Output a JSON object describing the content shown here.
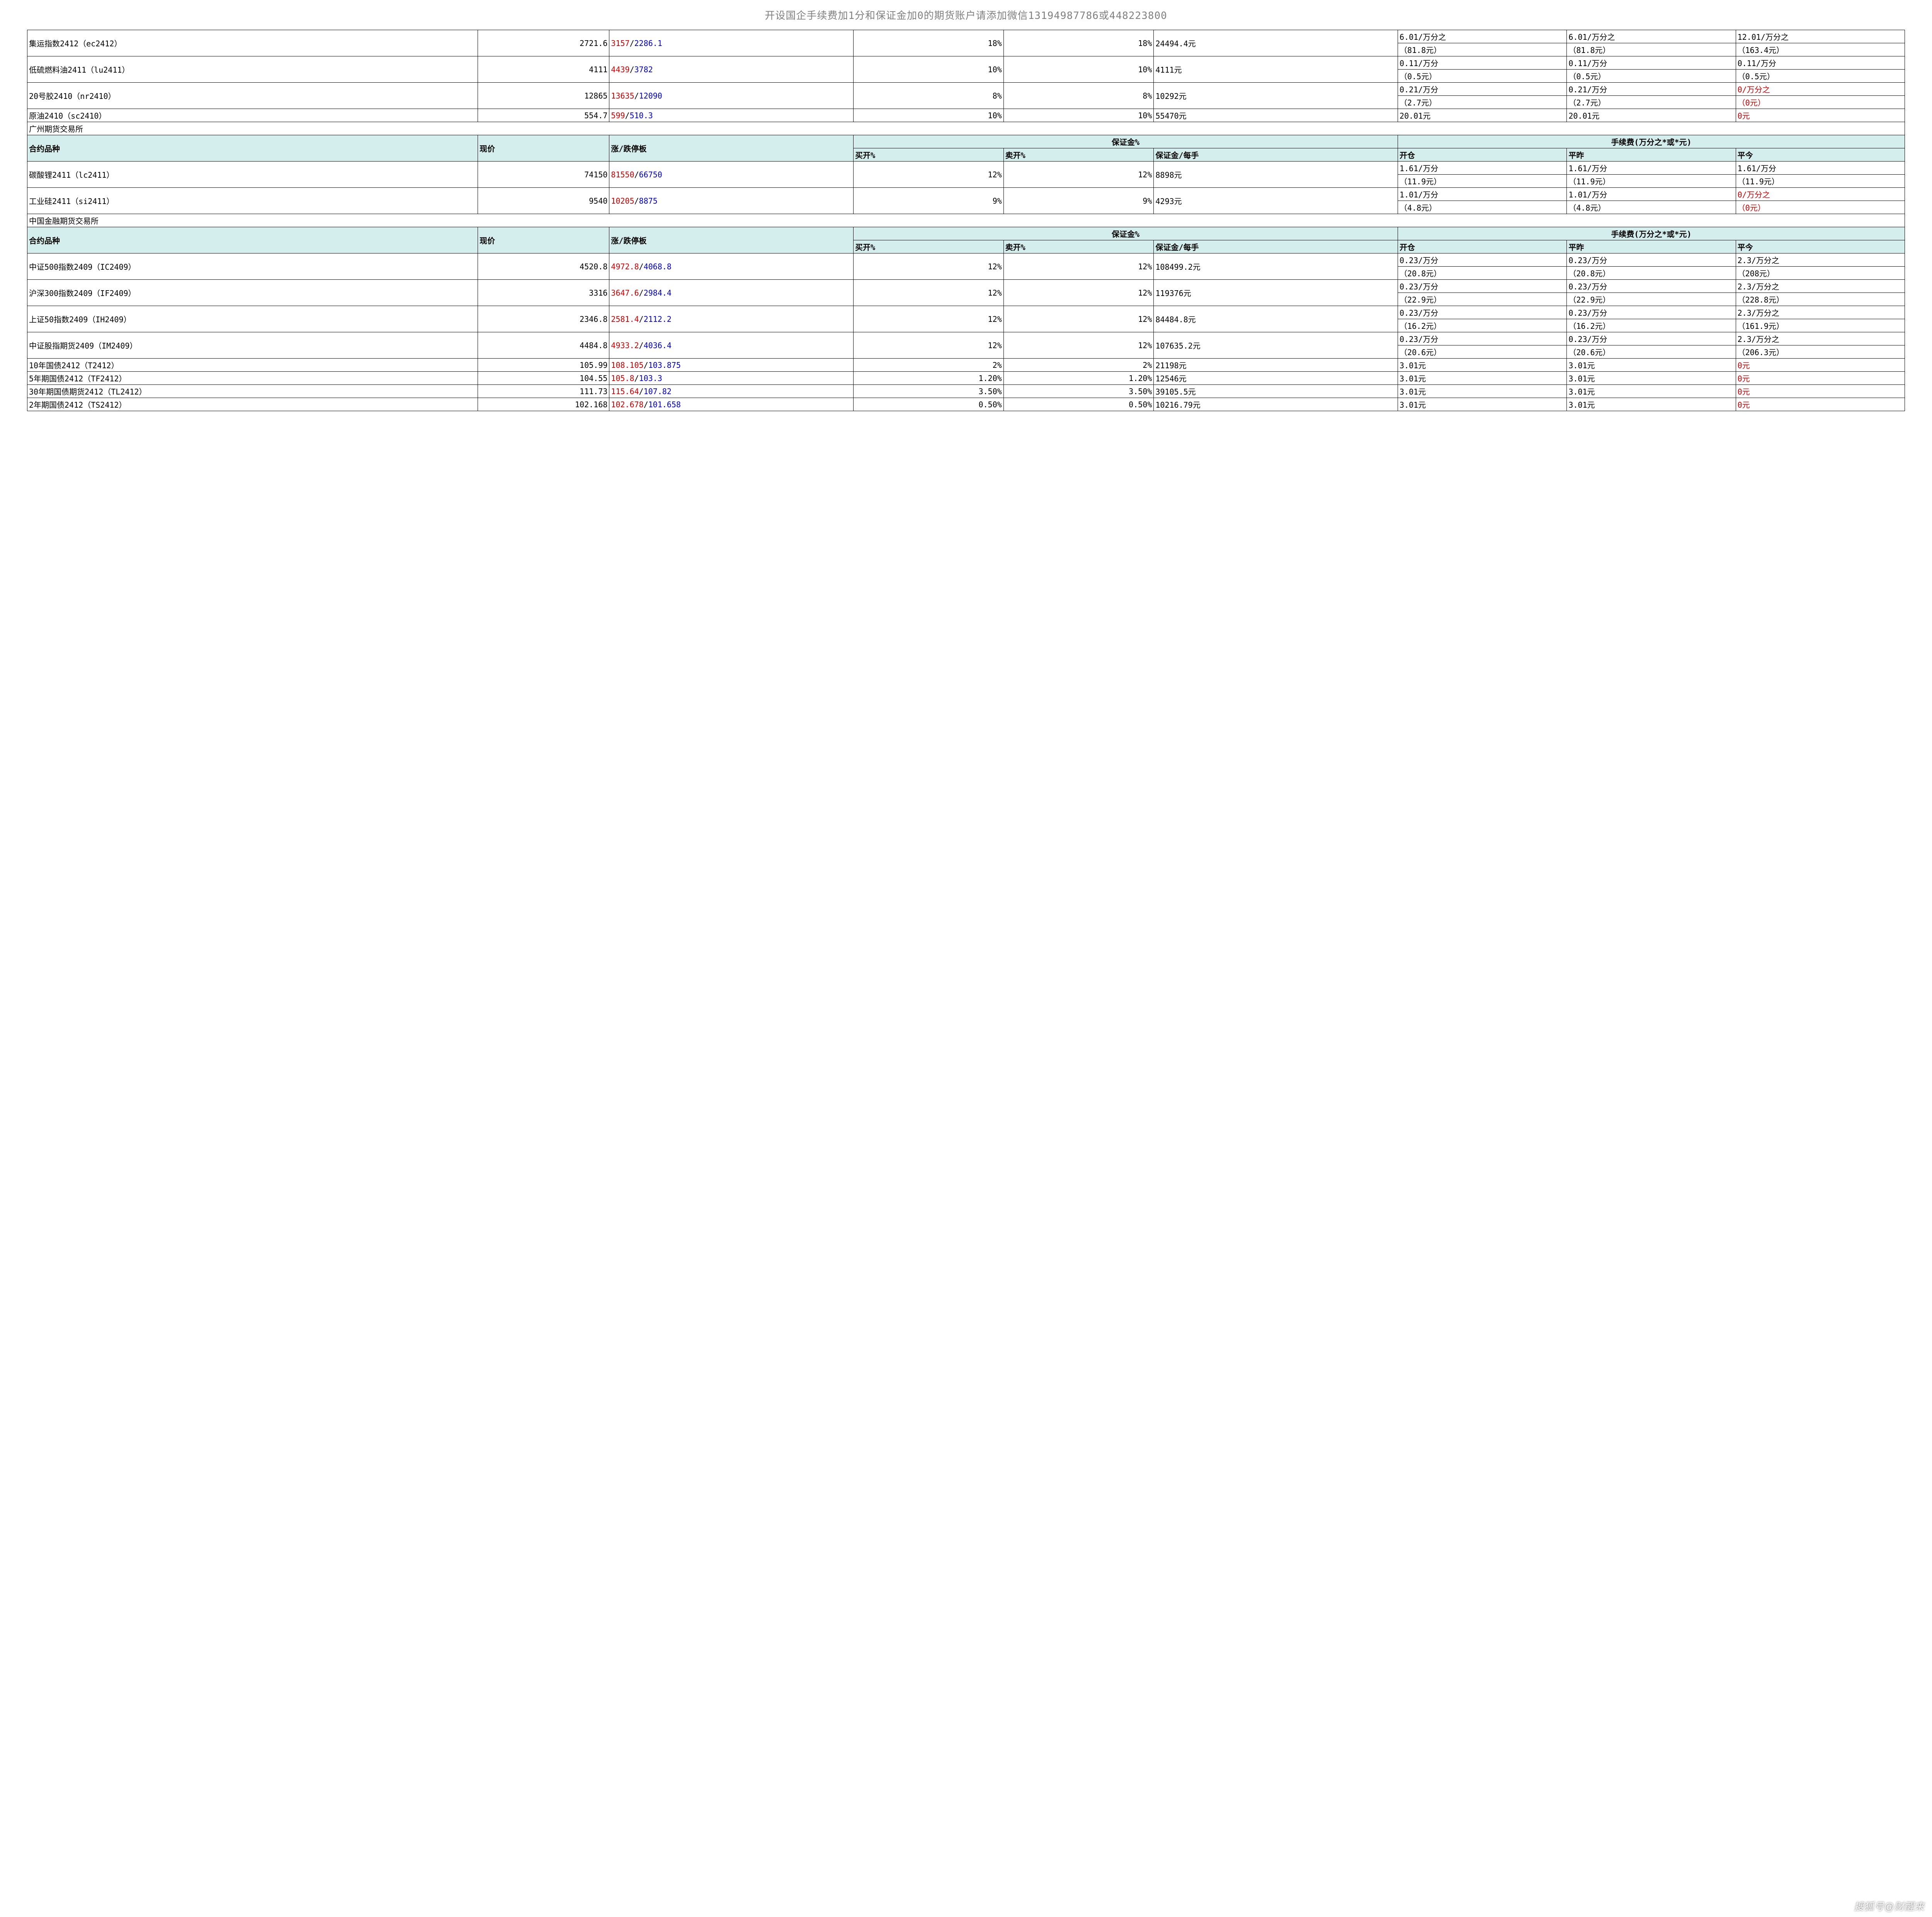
{
  "header": "开设国企手续费加1分和保证金加0的期货账户请添加微信13194987786或448223800",
  "watermark": "搜狐号@财醒来",
  "colors": {
    "header_bg": "#d4eeed",
    "text": "#000000",
    "header_text": "#808080",
    "up": "#d00000",
    "down": "#0000d0",
    "zero": "#d00000"
  },
  "labels": {
    "contract": "合约品种",
    "price": "现价",
    "limit": "涨/跌停板",
    "margin_pct": "保证金%",
    "buy_pct": "买开%",
    "sell_pct": "卖开%",
    "margin_per": "保证金/每手",
    "fee_header": "手续费(万分之*或*元)",
    "open": "开仓",
    "close_prev": "平昨",
    "close_today": "平今"
  },
  "sections": [
    {
      "rows": [
        {
          "name": "集运指数2412（ec2412）",
          "price": "2721.6",
          "up": "3157",
          "down": "2286.1",
          "buy": "18%",
          "sell": "18%",
          "margin": "24494.4元",
          "open_rate": "6.01/万分之",
          "open_amt": "（81.8元）",
          "prev_rate": "6.01/万分之",
          "prev_amt": "（81.8元）",
          "today_rate": "12.01/万分之",
          "today_amt": "（163.4元）",
          "split": true
        },
        {
          "name": "低硫燃料油2411（lu2411）",
          "price": "4111",
          "up": "4439",
          "down": "3782",
          "buy": "10%",
          "sell": "10%",
          "margin": "4111元",
          "open_rate": "0.11/万分",
          "open_amt": "（0.5元）",
          "prev_rate": "0.11/万分",
          "prev_amt": "（0.5元）",
          "today_rate": "0.11/万分",
          "today_amt": "（0.5元）",
          "split": true
        },
        {
          "name": "20号胶2410（nr2410）",
          "price": "12865",
          "up": "13635",
          "down": "12090",
          "buy": "8%",
          "sell": "8%",
          "margin": "10292元",
          "open_rate": "0.21/万分",
          "open_amt": "（2.7元）",
          "prev_rate": "0.21/万分",
          "prev_amt": "（2.7元）",
          "today_rate": "0/万分之",
          "today_amt": "（0元）",
          "today_red": true,
          "split": true
        },
        {
          "name": "原油2410（sc2410）",
          "price": "554.7",
          "up": "599",
          "down": "510.3",
          "buy": "10%",
          "sell": "10%",
          "margin": "55470元",
          "open_rate": "20.01元",
          "prev_rate": "20.01元",
          "today_rate": "0元",
          "today_red": true,
          "split": false
        }
      ]
    },
    {
      "title": "广州期货交易所",
      "header": true,
      "rows": [
        {
          "name": "碳酸锂2411（lc2411）",
          "price": "74150",
          "up": "81550",
          "down": "66750",
          "buy": "12%",
          "sell": "12%",
          "margin": "8898元",
          "open_rate": "1.61/万分",
          "open_amt": "（11.9元）",
          "prev_rate": "1.61/万分",
          "prev_amt": "（11.9元）",
          "today_rate": "1.61/万分",
          "today_amt": "（11.9元）",
          "split": true
        },
        {
          "name": "工业硅2411（si2411）",
          "price": "9540",
          "up": "10205",
          "down": "8875",
          "buy": "9%",
          "sell": "9%",
          "margin": "4293元",
          "open_rate": "1.01/万分",
          "open_amt": "（4.8元）",
          "prev_rate": "1.01/万分",
          "prev_amt": "（4.8元）",
          "today_rate": "0/万分之",
          "today_amt": "（0元）",
          "today_red": true,
          "split": true
        }
      ]
    },
    {
      "title": "中国金融期货交易所",
      "header": true,
      "rows": [
        {
          "name": "中证500指数2409（IC2409）",
          "price": "4520.8",
          "up": "4972.8",
          "down": "4068.8",
          "buy": "12%",
          "sell": "12%",
          "margin": "108499.2元",
          "open_rate": "0.23/万分",
          "open_amt": "（20.8元）",
          "prev_rate": "0.23/万分",
          "prev_amt": "（20.8元）",
          "today_rate": "2.3/万分之",
          "today_amt": "（208元）",
          "split": true
        },
        {
          "name": "沪深300指数2409（IF2409）",
          "price": "3316",
          "up": "3647.6",
          "down": "2984.4",
          "buy": "12%",
          "sell": "12%",
          "margin": "119376元",
          "open_rate": "0.23/万分",
          "open_amt": "（22.9元）",
          "prev_rate": "0.23/万分",
          "prev_amt": "（22.9元）",
          "today_rate": "2.3/万分之",
          "today_amt": "（228.8元）",
          "split": true
        },
        {
          "name": "上证50指数2409（IH2409）",
          "price": "2346.8",
          "up": "2581.4",
          "down": "2112.2",
          "buy": "12%",
          "sell": "12%",
          "margin": "84484.8元",
          "open_rate": "0.23/万分",
          "open_amt": "（16.2元）",
          "prev_rate": "0.23/万分",
          "prev_amt": "（16.2元）",
          "today_rate": "2.3/万分之",
          "today_amt": "（161.9元）",
          "split": true
        },
        {
          "name": "中证股指期货2409（IM2409）",
          "price": "4484.8",
          "up": "4933.2",
          "down": "4036.4",
          "buy": "12%",
          "sell": "12%",
          "margin": "107635.2元",
          "open_rate": "0.23/万分",
          "open_amt": "（20.6元）",
          "prev_rate": "0.23/万分",
          "prev_amt": "（20.6元）",
          "today_rate": "2.3/万分之",
          "today_amt": "（206.3元）",
          "split": true
        },
        {
          "name": "10年国债2412（T2412）",
          "price": "105.99",
          "up": "108.105",
          "down": "103.875",
          "buy": "2%",
          "sell": "2%",
          "margin": "21198元",
          "open_rate": "3.01元",
          "prev_rate": "3.01元",
          "today_rate": "0元",
          "today_red": true,
          "split": false
        },
        {
          "name": "5年期国债2412（TF2412）",
          "price": "104.55",
          "up": "105.8",
          "down": "103.3",
          "buy": "1.20%",
          "sell": "1.20%",
          "margin": "12546元",
          "open_rate": "3.01元",
          "prev_rate": "3.01元",
          "today_rate": "0元",
          "today_red": true,
          "split": false
        },
        {
          "name": "30年期国债期货2412（TL2412）",
          "price": "111.73",
          "up": "115.64",
          "down": "107.82",
          "buy": "3.50%",
          "sell": "3.50%",
          "margin": "39105.5元",
          "open_rate": "3.01元",
          "prev_rate": "3.01元",
          "today_rate": "0元",
          "today_red": true,
          "split": false
        },
        {
          "name": "2年期国债2412（TS2412）",
          "price": "102.168",
          "up": "102.678",
          "down": "101.658",
          "buy": "0.50%",
          "sell": "0.50%",
          "margin": "10216.79元",
          "open_rate": "3.01元",
          "prev_rate": "3.01元",
          "today_rate": "0元",
          "today_red": true,
          "split": false
        }
      ]
    }
  ]
}
